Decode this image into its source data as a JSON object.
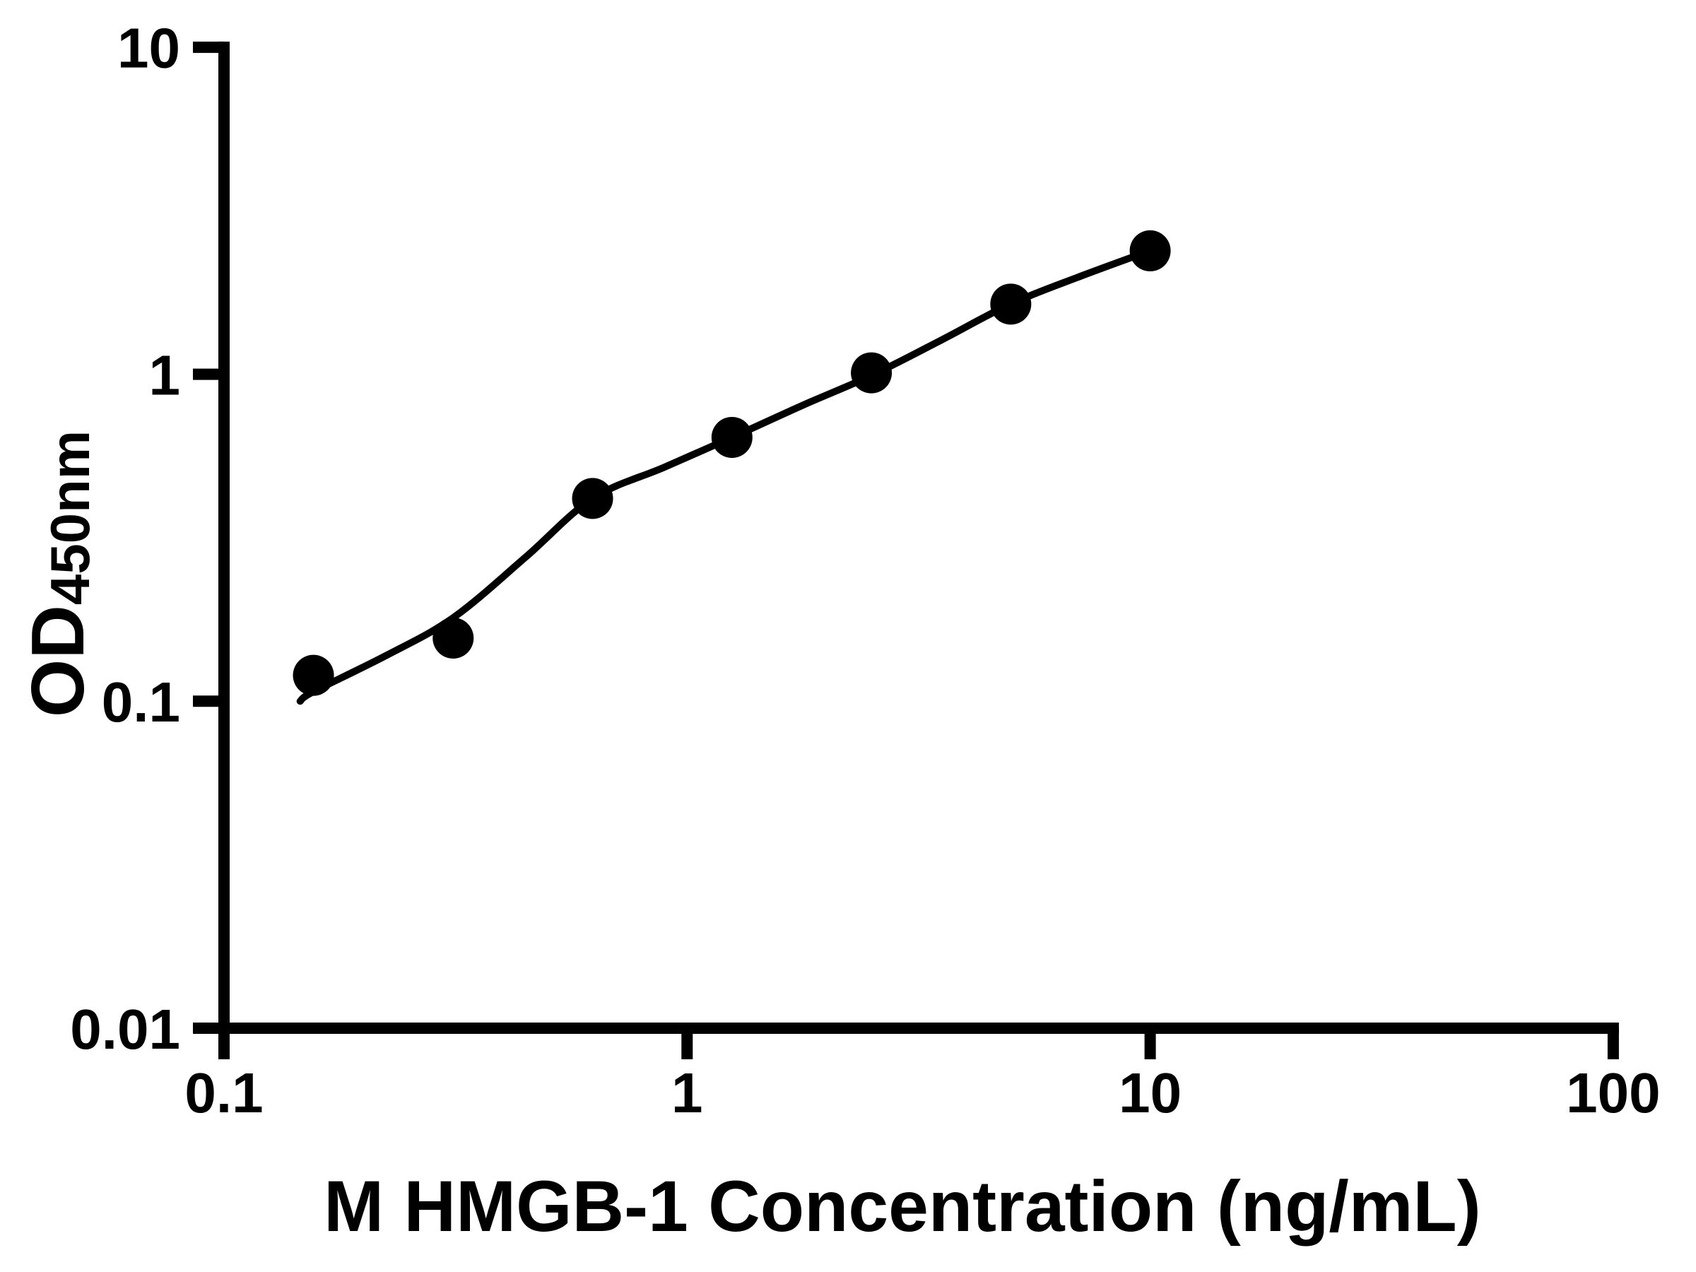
{
  "chart_data": {
    "type": "scatter",
    "title": "",
    "xlabel": "M HMGB-1 Concentration (ng/mL)",
    "ylabel_main": "OD",
    "ylabel_sub": "450nm",
    "x_scale": "log",
    "y_scale": "log",
    "xlim": [
      0.1,
      100
    ],
    "ylim": [
      0.01,
      10
    ],
    "grid": false,
    "legend": "none",
    "x_ticks": [
      {
        "value": 0.1,
        "label": "0.1"
      },
      {
        "value": 1,
        "label": "1"
      },
      {
        "value": 10,
        "label": "10"
      },
      {
        "value": 100,
        "label": "100"
      }
    ],
    "y_ticks": [
      {
        "value": 10,
        "label": "10"
      },
      {
        "value": 1,
        "label": "1"
      },
      {
        "value": 0.1,
        "label": "0.1"
      },
      {
        "value": 0.01,
        "label": "0.01"
      }
    ],
    "series": [
      {
        "name": "standard-curve-points",
        "marker": "filled-circle",
        "color": "#000000",
        "points": [
          {
            "x": 0.156,
            "y": 0.12
          },
          {
            "x": 0.3125,
            "y": 0.156
          },
          {
            "x": 0.625,
            "y": 0.417
          },
          {
            "x": 1.25,
            "y": 0.641
          },
          {
            "x": 2.5,
            "y": 1.01
          },
          {
            "x": 5,
            "y": 1.639
          },
          {
            "x": 10,
            "y": 2.385
          }
        ]
      }
    ],
    "fit_curve": [
      [
        0.146,
        0.1
      ],
      [
        0.156,
        0.107
      ],
      [
        0.224,
        0.138
      ],
      [
        0.3125,
        0.18
      ],
      [
        0.447,
        0.275
      ],
      [
        0.625,
        0.417
      ],
      [
        0.891,
        0.519
      ],
      [
        1.25,
        0.641
      ],
      [
        1.778,
        0.804
      ],
      [
        2.5,
        0.991
      ],
      [
        3.548,
        1.274
      ],
      [
        5.0,
        1.641
      ],
      [
        7.08,
        1.995
      ],
      [
        10.0,
        2.388
      ]
    ],
    "colors": {
      "axis": "#000000",
      "marker": "#000000",
      "curve": "#000000",
      "background": "#ffffff"
    }
  }
}
